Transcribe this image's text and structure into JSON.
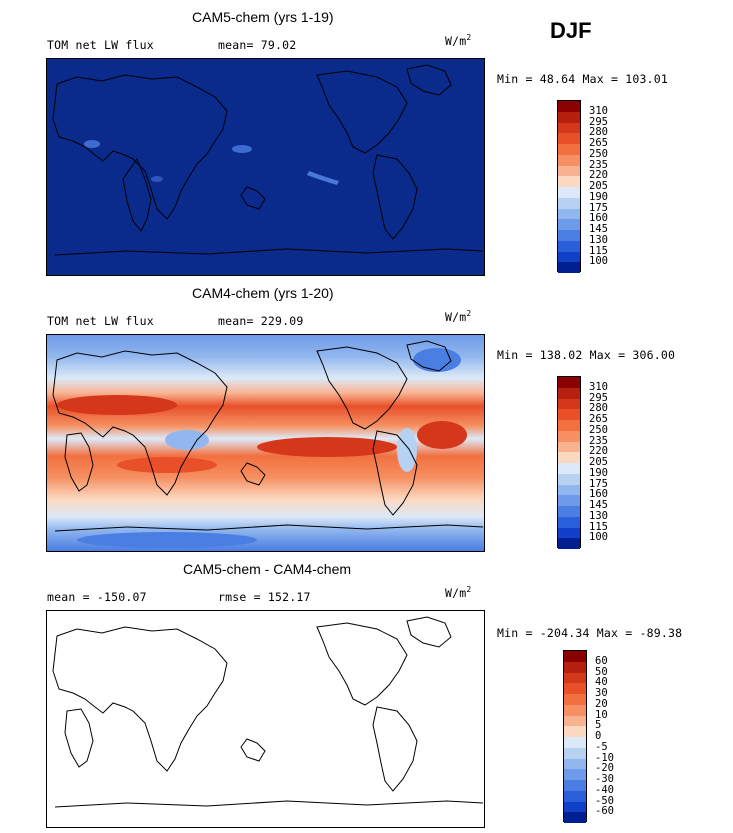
{
  "season": "DJF",
  "units": {
    "base": "W/m",
    "exp": "2"
  },
  "panels": [
    {
      "title": "CAM5-chem (yrs 1-19)",
      "left_text": "TOM net LW flux",
      "right_text": "mean=  79.02",
      "minmax": "Min =  48.64 Max = 103.01",
      "colorbar": {
        "labels": [
          "310",
          "295",
          "280",
          "265",
          "250",
          "235",
          "220",
          "205",
          "190",
          "175",
          "160",
          "145",
          "130",
          "115",
          "100"
        ],
        "colors": [
          "#8b0000",
          "#b5200f",
          "#d4371a",
          "#e8502a",
          "#f2703f",
          "#f69062",
          "#f9b28f",
          "#fbd8c0",
          "#dde9f8",
          "#b7d1f3",
          "#92b7ee",
          "#6e9be9",
          "#4a7ee3",
          "#2a5fda",
          "#1140c8",
          "#001f91"
        ]
      },
      "map": {
        "fill": "#0a2a8c",
        "accent_patches": "#4a78d8"
      }
    },
    {
      "title": "CAM4-chem (yrs 1-20)",
      "left_text": "TOM net LW flux",
      "right_text": "mean= 229.09",
      "minmax": "Min = 138.02 Max = 306.00",
      "colorbar": {
        "labels": [
          "310",
          "295",
          "280",
          "265",
          "250",
          "235",
          "220",
          "205",
          "190",
          "175",
          "160",
          "145",
          "130",
          "115",
          "100"
        ],
        "colors": [
          "#8b0000",
          "#b5200f",
          "#d4371a",
          "#e8502a",
          "#f2703f",
          "#f69062",
          "#f9b28f",
          "#fbd8c0",
          "#dde9f8",
          "#b7d1f3",
          "#92b7ee",
          "#6e9be9",
          "#4a7ee3",
          "#2a5fda",
          "#1140c8",
          "#001f91"
        ]
      }
    },
    {
      "title": "CAM5-chem - CAM4-chem",
      "left_text": "mean = -150.07",
      "right_text": "rmse = 152.17",
      "minmax": "Min = -204.34 Max = -89.38",
      "colorbar": {
        "labels": [
          "60",
          "50",
          "40",
          "30",
          "20",
          "10",
          "5",
          "0",
          "-5",
          "-10",
          "-20",
          "-30",
          "-40",
          "-50",
          "-60"
        ],
        "colors": [
          "#8b0000",
          "#b5200f",
          "#d4371a",
          "#e8502a",
          "#f2703f",
          "#f69062",
          "#f9b28f",
          "#fbd8c0",
          "#dde9f8",
          "#b7d1f3",
          "#92b7ee",
          "#6e9be9",
          "#4a7ee3",
          "#2a5fda",
          "#1140c8",
          "#001f91"
        ]
      },
      "map": {
        "fill": "#ffffff"
      }
    }
  ]
}
